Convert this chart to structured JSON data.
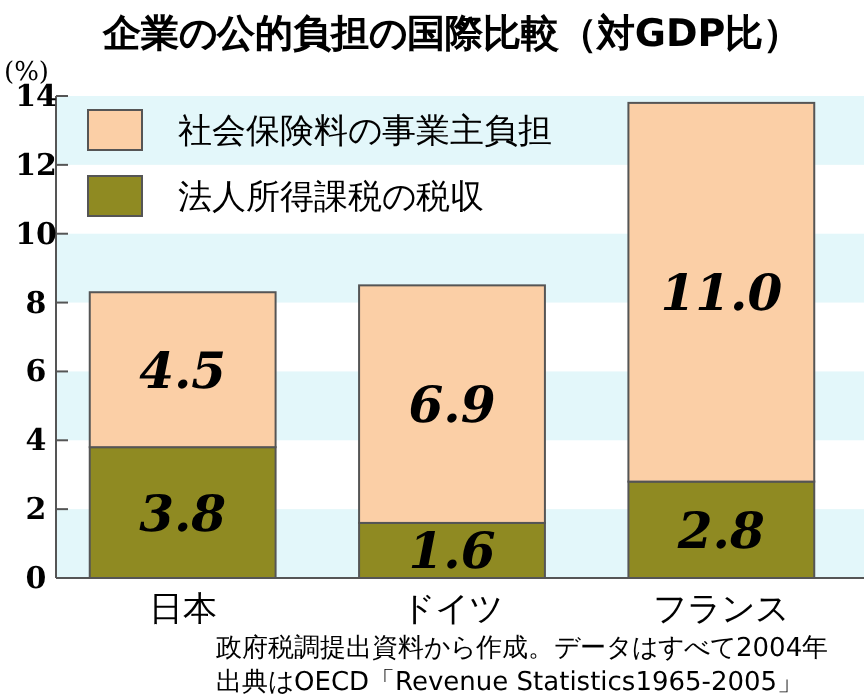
{
  "chart_data": {
    "type": "bar",
    "stacked": true,
    "title": "企業の公的負担の国際比較（対GDP比）",
    "ylabel": "(%)",
    "categories": [
      "日本",
      "ドイツ",
      "フランス"
    ],
    "series": [
      {
        "name": "法人所得課税の税収",
        "color": "#8f8a22",
        "values": [
          3.8,
          1.6,
          2.8
        ],
        "value_labels": [
          "3.8",
          "1.6",
          "2.8"
        ]
      },
      {
        "name": "社会保険料の事業主負担",
        "color": "#fbcfa6",
        "values": [
          4.5,
          6.9,
          11.0
        ],
        "value_labels": [
          "4.5",
          "6.9",
          "11.0"
        ]
      }
    ],
    "ylim": [
      0,
      14
    ],
    "yticks": [
      0,
      2,
      4,
      6,
      8,
      10,
      12,
      14
    ],
    "bands": [
      {
        "axis": "y",
        "from": 0,
        "to": 2,
        "color": "#e3f7fa"
      },
      {
        "axis": "y",
        "from": 4,
        "to": 6,
        "color": "#e3f7fa"
      },
      {
        "axis": "y",
        "from": 8,
        "to": 10,
        "color": "#e3f7fa"
      },
      {
        "axis": "y",
        "from": 12,
        "to": 14,
        "color": "#e3f7fa"
      }
    ],
    "legend": "top left",
    "annotations": [
      "政府税調提出資料から作成。データはすべて2004年",
      "出典はOECD「Revenue Statistics1965-2005」"
    ]
  }
}
